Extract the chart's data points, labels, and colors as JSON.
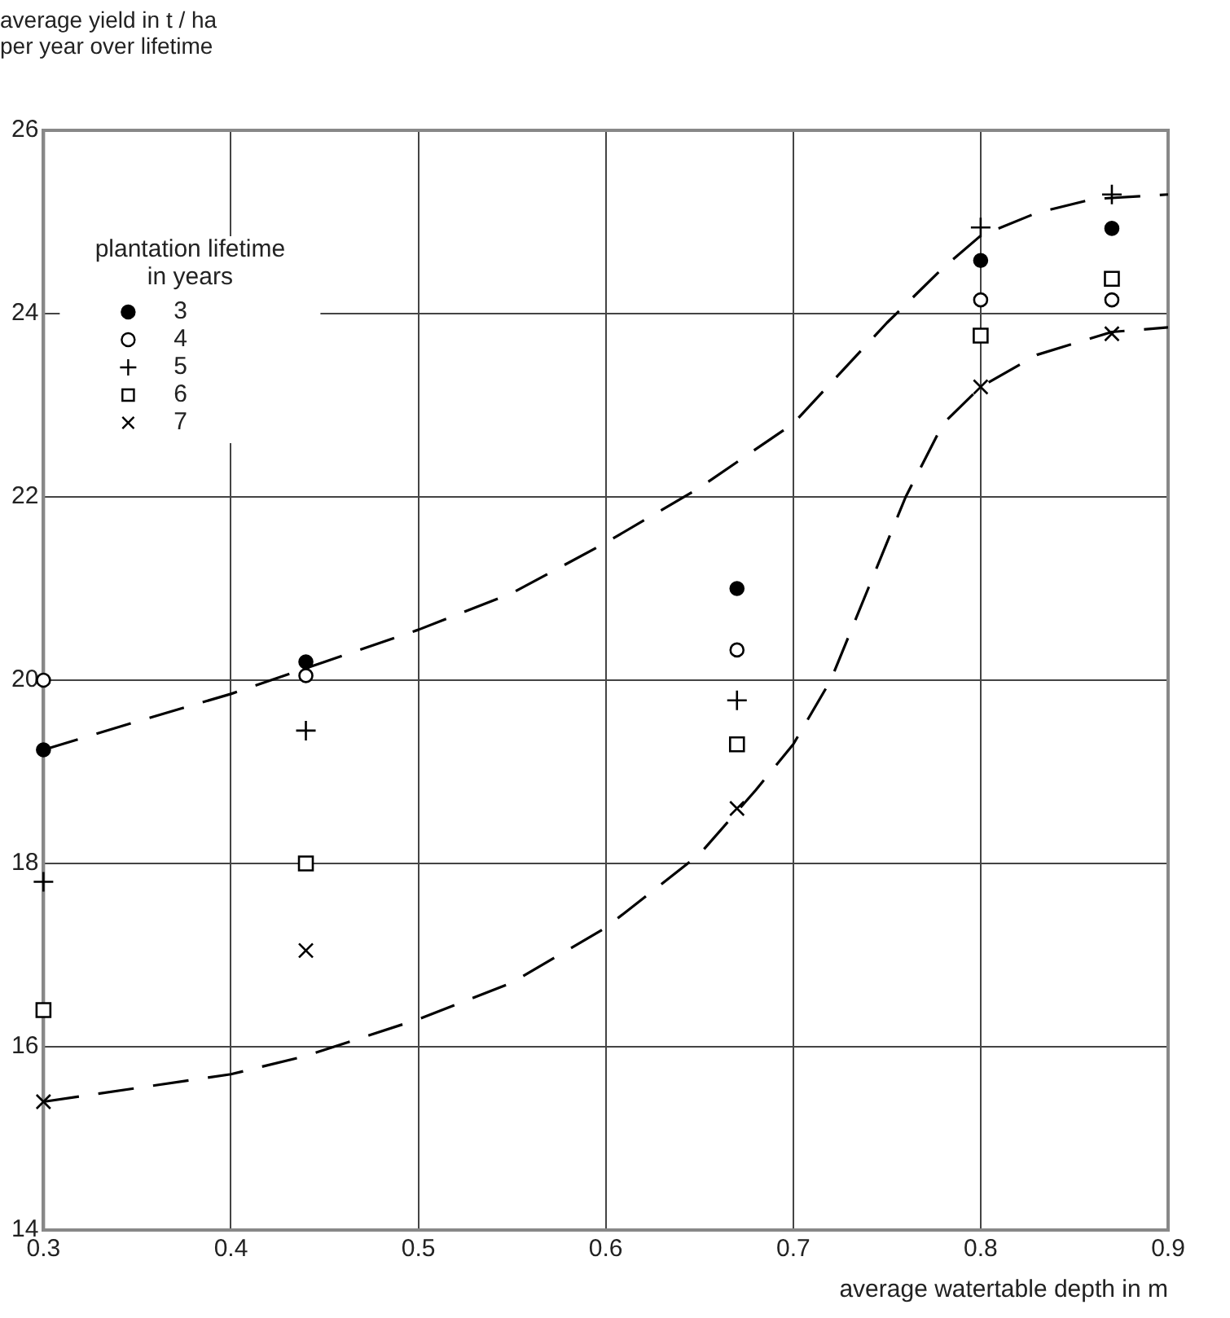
{
  "chart_data": {
    "type": "scatter",
    "ylabel": "average yield in t / ha\nper year over lifetime",
    "xlabel": "average watertable depth in m",
    "legend_title": "plantation lifetime\nin years",
    "legend": "top left",
    "grid": true,
    "xlim": [
      0.3,
      0.9
    ],
    "xticks": [
      0.3,
      0.4,
      0.5,
      0.6,
      0.7,
      0.8,
      0.9
    ],
    "ylim": [
      14,
      26
    ],
    "yticks": [
      14,
      16,
      18,
      20,
      22,
      24,
      26
    ],
    "x": [
      0.3,
      0.44,
      0.67,
      0.8,
      0.87
    ],
    "series": [
      {
        "name": "3",
        "color": "#000000",
        "marker": "circle",
        "values": [
          19.24,
          20.2,
          21.0,
          24.58,
          24.93
        ]
      },
      {
        "name": "4",
        "color": "#000000",
        "marker": "circle",
        "values": [
          20.0,
          20.05,
          20.33,
          24.15,
          24.15
        ]
      },
      {
        "name": "5",
        "color": "#000000",
        "marker": "cross",
        "values": [
          17.8,
          19.45,
          19.78,
          24.94,
          25.3
        ]
      },
      {
        "name": "6",
        "color": "#000000",
        "marker": "square",
        "values": [
          16.4,
          18.0,
          19.3,
          23.76,
          24.38
        ]
      },
      {
        "name": "7",
        "color": "#000000",
        "marker": "x",
        "values": [
          15.4,
          17.05,
          18.6,
          23.2,
          23.78
        ]
      },
      {
        "type": "line",
        "color": "#000000",
        "line_style": "dashed",
        "marker": "none",
        "x": [
          0.3,
          0.35,
          0.4,
          0.45,
          0.5,
          0.55,
          0.6,
          0.65,
          0.7,
          0.75,
          0.78,
          0.8,
          0.83,
          0.86,
          0.9
        ],
        "values": [
          19.24,
          19.55,
          19.85,
          20.2,
          20.55,
          20.95,
          21.5,
          22.1,
          22.8,
          23.9,
          24.5,
          24.85,
          25.1,
          25.25,
          25.3
        ]
      },
      {
        "type": "line",
        "color": "#000000",
        "line_style": "dashed",
        "marker": "none",
        "x": [
          0.3,
          0.4,
          0.44,
          0.5,
          0.55,
          0.6,
          0.65,
          0.68,
          0.7,
          0.72,
          0.74,
          0.76,
          0.78,
          0.8,
          0.83,
          0.87,
          0.9
        ],
        "values": [
          15.4,
          15.7,
          15.9,
          16.3,
          16.7,
          17.3,
          18.1,
          18.8,
          19.3,
          20.0,
          21.0,
          22.0,
          22.8,
          23.2,
          23.55,
          23.8,
          23.85
        ]
      }
    ]
  }
}
